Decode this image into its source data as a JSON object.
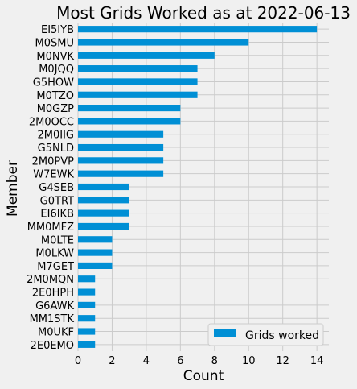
{
  "chart_data": {
    "type": "bar",
    "orientation": "horizontal",
    "title": "Most Grids Worked as at 2022-06-13",
    "xlabel": "Count",
    "ylabel": "Member",
    "xlim": [
      0,
      14.7
    ],
    "xticks": [
      0,
      2,
      4,
      6,
      8,
      10,
      12,
      14
    ],
    "grid": true,
    "legend_position": "lower-right",
    "bar_color": "#008fd5",
    "categories": [
      "EI5IYB",
      "M0SMU",
      "M0NVK",
      "M0JQQ",
      "G5HOW",
      "M0TZO",
      "M0GZP",
      "2M0OCC",
      "2M0IIG",
      "G5NLD",
      "2M0PVP",
      "W7EWK",
      "G4SEB",
      "G0TRT",
      "EI6IKB",
      "MM0MFZ",
      "M0LTE",
      "M0LKW",
      "M7GET",
      "2M0MQN",
      "2E0HPH",
      "G6AWK",
      "MM1STK",
      "M0UKF",
      "2E0EMO"
    ],
    "series": [
      {
        "name": "Grids worked",
        "values": [
          14,
          10,
          8,
          7,
          7,
          7,
          6,
          6,
          5,
          5,
          5,
          5,
          3,
          3,
          3,
          3,
          2,
          2,
          2,
          1,
          1,
          1,
          1,
          1,
          1
        ]
      }
    ]
  }
}
